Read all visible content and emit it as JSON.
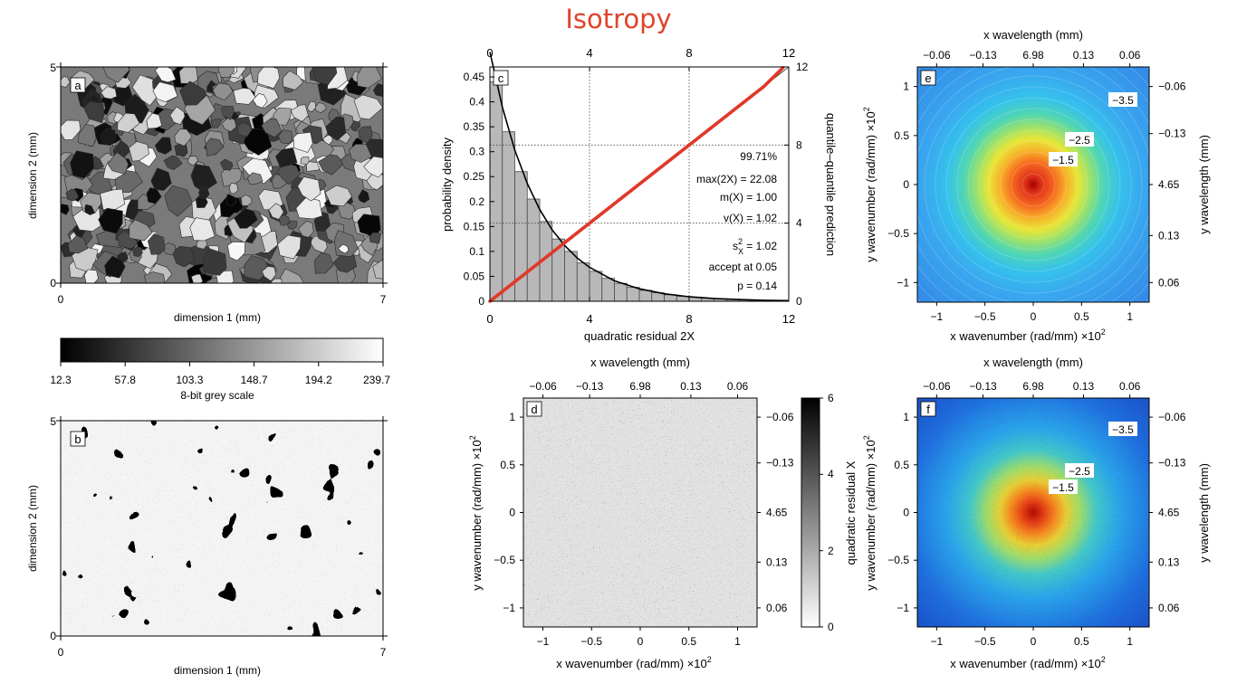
{
  "title": "Isotropy",
  "colors": {
    "title": "#e0442c",
    "qq_points": "#e0392a"
  },
  "panel_a": {
    "tag": "a",
    "xlabel": "dimension 1 (mm)",
    "ylabel": "dimension 2 (mm)",
    "xticks": [
      "0",
      "7"
    ],
    "yticks": [
      "0",
      "5"
    ],
    "image": "grayscale thin-section micrograph of grains"
  },
  "greyscale_bar": {
    "label": "8-bit grey scale",
    "ticks": [
      "12.3",
      "57.8",
      "103.3",
      "148.7",
      "194.2",
      "239.7"
    ]
  },
  "panel_b": {
    "tag": "b",
    "xlabel": "dimension 1 (mm)",
    "ylabel": "dimension 2 (mm)",
    "xticks": [
      "0",
      "7"
    ],
    "yticks": [
      "0",
      "5"
    ],
    "image": "binary-like synthetic random field"
  },
  "panel_c": {
    "tag": "c",
    "xlabel": "quadratic residual 2X",
    "ylabel_left": "probability density",
    "ylabel_right": "quantile–quantile prediction",
    "xticks": [
      "0",
      "4",
      "8",
      "12"
    ],
    "xticks_top": [
      "0",
      "4",
      "8",
      "12"
    ],
    "yticks_left": [
      "0",
      "0.05",
      "0.1",
      "0.15",
      "0.2",
      "0.25",
      "0.3",
      "0.35",
      "0.4",
      "0.45"
    ],
    "yticks_right": [
      "0",
      "4",
      "8",
      "12"
    ],
    "stats": {
      "pct": "99.71%",
      "max": "max(2X) = 22.08",
      "mean": "m(X) =  1.00",
      "var": "v(X) =  1.02",
      "s2_label": "s",
      "s2_sup": "2",
      "s2_sub": "X",
      "s2_val": " =  1.02",
      "accept": "accept at 0.05",
      "p": "p =  0.14"
    }
  },
  "chart_data": [
    {
      "type": "bar",
      "panel": "c",
      "x_bin_centers": [
        0.25,
        0.75,
        1.25,
        1.75,
        2.25,
        2.75,
        3.25,
        3.75,
        4.25,
        4.75,
        5.25,
        5.75,
        6.25,
        6.75,
        7.25,
        7.75,
        8.25,
        8.75,
        9.25,
        9.75,
        10.25,
        10.75,
        11.25,
        11.75
      ],
      "values": [
        0.44,
        0.34,
        0.26,
        0.205,
        0.16,
        0.125,
        0.1,
        0.077,
        0.06,
        0.046,
        0.036,
        0.028,
        0.022,
        0.017,
        0.013,
        0.01,
        0.008,
        0.006,
        0.005,
        0.004,
        0.003,
        0.0025,
        0.002,
        0.0015
      ],
      "xlim": [
        0,
        12
      ],
      "ylim": [
        0,
        0.47
      ],
      "xlabel": "quadratic residual 2X",
      "ylabel": "probability density"
    },
    {
      "type": "line",
      "panel": "c",
      "description_series": "chi-square 2 dof density",
      "x": [
        0,
        0.5,
        1,
        1.5,
        2,
        2.5,
        3,
        3.5,
        4,
        5,
        6,
        7,
        8,
        9,
        10,
        11,
        12
      ],
      "y": [
        0.5,
        0.389,
        0.303,
        0.236,
        0.184,
        0.143,
        0.112,
        0.087,
        0.068,
        0.041,
        0.025,
        0.015,
        0.009,
        0.0056,
        0.0034,
        0.002,
        0.0012
      ]
    },
    {
      "type": "scatter",
      "panel": "c",
      "x": [
        0,
        1,
        2,
        3,
        4,
        5,
        6,
        7,
        8,
        9,
        10,
        11,
        11.8
      ],
      "y": [
        0,
        1,
        2,
        3,
        4,
        5,
        6,
        7,
        8,
        9,
        10,
        11,
        12
      ],
      "xlim": [
        0,
        12
      ],
      "ylim": [
        0,
        12
      ]
    }
  ],
  "panel_d": {
    "tag": "d",
    "xlabel": "x wavenumber (rad/mm) ×10",
    "ylabel": "y wavenumber (rad/mm) ×10",
    "exp": "2",
    "toplabel": "x wavelength (mm)",
    "rightlabel": "",
    "xticks": [
      "−1",
      "−0.5",
      "0",
      "0.5",
      "1"
    ],
    "yticks": [
      "−1",
      "−0.5",
      "0",
      "0.5",
      "1"
    ],
    "top_ticks": [
      "−0.06",
      "−0.13",
      "6.98",
      "0.13",
      "0.06"
    ],
    "right_ticks": [
      "0.06",
      "0.13",
      "4.65",
      "−0.13",
      "−0.06"
    ],
    "colorbar_label": "quadratic residual X",
    "colorbar_ticks": [
      "0",
      "2",
      "4",
      "6"
    ]
  },
  "panel_e": {
    "tag": "e",
    "xlabel": "x wavenumber (rad/mm) ×10",
    "ylabel": "y wavenumber (rad/mm) ×10",
    "exp": "2",
    "toplabel": "x wavelength (mm)",
    "rightlabel": "y wavelength (mm)",
    "xticks": [
      "−1",
      "−0.5",
      "0",
      "0.5",
      "1"
    ],
    "yticks": [
      "−1",
      "−0.5",
      "0",
      "0.5",
      "1"
    ],
    "top_ticks": [
      "−0.06",
      "−0.13",
      "6.98",
      "0.13",
      "0.06"
    ],
    "right_ticks": [
      "0.06",
      "0.13",
      "4.65",
      "−0.13",
      "−0.06"
    ],
    "contours": [
      "−1.5",
      "−2.5",
      "−3.5"
    ]
  },
  "panel_f": {
    "tag": "f",
    "xlabel": "x wavenumber (rad/mm) ×10",
    "ylabel": "y wavenumber (rad/mm) ×10",
    "exp": "2",
    "toplabel": "x wavelength (mm)",
    "rightlabel": "y wavelength (mm)",
    "xticks": [
      "−1",
      "−0.5",
      "0",
      "0.5",
      "1"
    ],
    "yticks": [
      "−1",
      "−0.5",
      "0",
      "0.5",
      "1"
    ],
    "top_ticks": [
      "−0.06",
      "−0.13",
      "6.98",
      "0.13",
      "0.06"
    ],
    "right_ticks": [
      "0.06",
      "0.13",
      "4.65",
      "−0.13",
      "−0.06"
    ],
    "contours": [
      "−1.5",
      "−2.5",
      "−3.5"
    ]
  }
}
